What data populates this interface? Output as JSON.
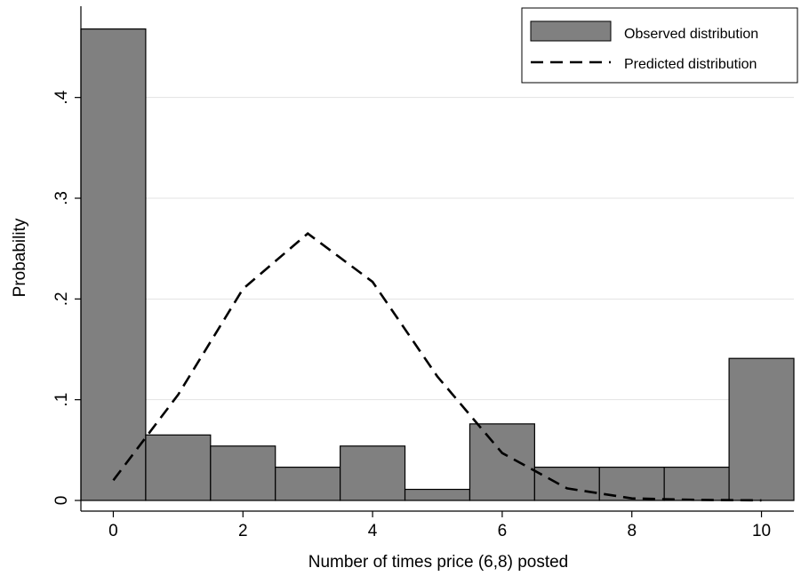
{
  "chart_data": {
    "type": "bar",
    "xlabel": "Number of times price (6,8) posted",
    "ylabel": "Probability",
    "xlim": [
      -0.5,
      10.5
    ],
    "ylim": [
      0,
      0.48
    ],
    "grid": true,
    "legend_position": "top-right",
    "x_ticks": [
      0,
      2,
      4,
      6,
      8,
      10
    ],
    "x_tick_labels": [
      "0",
      "2",
      "4",
      "6",
      "8",
      "10"
    ],
    "y_ticks": [
      0,
      0.1,
      0.2,
      0.3,
      0.4
    ],
    "y_tick_labels": [
      "0",
      ".1",
      ".2",
      ".3",
      ".4"
    ],
    "series": [
      {
        "name": "Observed distribution",
        "kind": "bar",
        "color": "#808080",
        "x": [
          0,
          1,
          2,
          3,
          4,
          5,
          6,
          7,
          8,
          9,
          10
        ],
        "values": [
          0.468,
          0.065,
          0.054,
          0.033,
          0.054,
          0.011,
          0.076,
          0.033,
          0.033,
          0.033,
          0.141
        ]
      },
      {
        "name": "Predicted distribution",
        "kind": "line",
        "style": "dashed",
        "color": "#000000",
        "x": [
          0,
          1,
          2,
          3,
          4,
          5,
          6,
          7,
          8,
          9,
          10
        ],
        "values": [
          0.02,
          0.105,
          0.21,
          0.265,
          0.217,
          0.123,
          0.047,
          0.012,
          0.002,
          0.0005,
          0.0001
        ]
      }
    ]
  }
}
